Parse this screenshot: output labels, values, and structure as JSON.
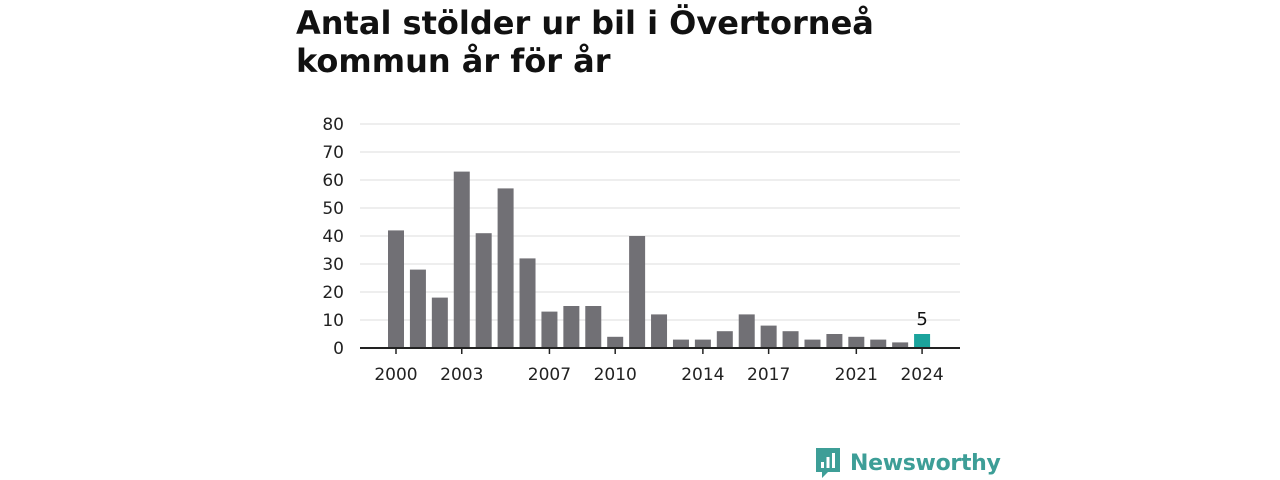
{
  "chart_data": {
    "type": "bar",
    "title": "Antal stölder ur bil i Övertorneå kommun år för år",
    "categories": [
      "2000",
      "2001",
      "2002",
      "2003",
      "2004",
      "2005",
      "2006",
      "2007",
      "2008",
      "2009",
      "2010",
      "2011",
      "2012",
      "2013",
      "2014",
      "2015",
      "2016",
      "2017",
      "2018",
      "2019",
      "2020",
      "2021",
      "2022",
      "2023",
      "2024"
    ],
    "values": [
      42,
      28,
      18,
      63,
      41,
      57,
      32,
      13,
      15,
      15,
      4,
      40,
      12,
      3,
      3,
      6,
      12,
      8,
      6,
      3,
      5,
      4,
      3,
      2,
      5
    ],
    "x_tick_labels": [
      "2000",
      "2003",
      "2007",
      "2010",
      "2014",
      "2017",
      "2021",
      "2024"
    ],
    "y_ticks": [
      "0",
      "10",
      "20",
      "30",
      "40",
      "50",
      "60",
      "70",
      "80"
    ],
    "ylim": [
      0,
      80
    ],
    "grid": true,
    "highlight": {
      "category": "2024",
      "label": "5"
    },
    "colors": {
      "bar": "#717075",
      "highlight": "#1ba39c",
      "grid": "#dddddd",
      "axis": "#222222"
    }
  },
  "brand": {
    "name": "Newsworthy",
    "icon": "newsworthy-logo-icon",
    "color": "#3d9e97"
  }
}
